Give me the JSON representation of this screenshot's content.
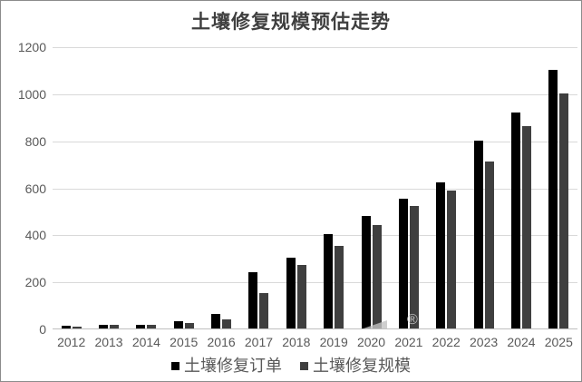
{
  "title": "土壤修复规模预估走势",
  "chart_data": {
    "type": "bar",
    "title": "土壤修复规模预估走势",
    "categories": [
      "2012",
      "2013",
      "2014",
      "2015",
      "2016",
      "2017",
      "2018",
      "2019",
      "2020",
      "2021",
      "2022",
      "2023",
      "2024",
      "2025"
    ],
    "series": [
      {
        "name": "土壤修复订单",
        "color": "#000000",
        "values": [
          12,
          15,
          14,
          30,
          60,
          240,
          300,
          400,
          480,
          550,
          620,
          800,
          920,
          1100
        ]
      },
      {
        "name": "土壤修复规模",
        "color": "#3f3f3f",
        "values": [
          8,
          14,
          15,
          22,
          40,
          150,
          270,
          350,
          440,
          520,
          585,
          710,
          860,
          1000
        ]
      }
    ],
    "xlabel": "",
    "ylabel": "",
    "ylim": [
      0,
      1200
    ],
    "yticks": [
      0,
      200,
      400,
      600,
      800,
      1000,
      1200
    ],
    "grid": "horizontal",
    "legend_position": "bottom"
  },
  "watermark": {
    "registered_mark": "®"
  },
  "colors": {
    "series_1": "#000000",
    "series_2": "#3f3f3f",
    "gridline": "#d9d9d9",
    "axis_line": "#bfbfbf",
    "tick_text": "#595959",
    "title_text": "#3f3f3f",
    "frame_border": "#8c8c8c"
  }
}
